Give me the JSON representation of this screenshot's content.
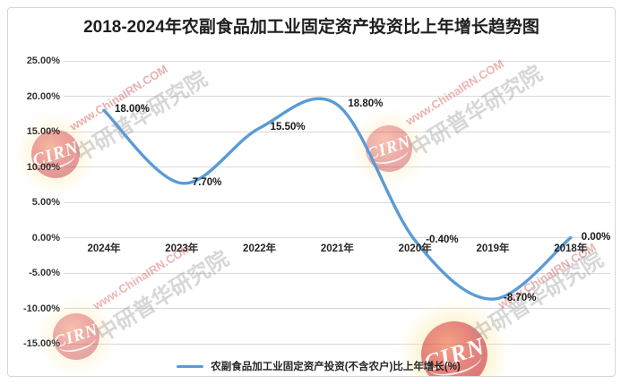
{
  "chart": {
    "title": "2018-2024年农副食品加工业固定资产投资比上年增长趋势图",
    "legend_label": "农副食品加工业固定资产投资(不含农户)比上年增长(%)",
    "line_color": "#5B9BD5"
  },
  "chart_data": {
    "type": "line",
    "smooth": true,
    "grid": true,
    "legend_position": "bottom",
    "title": "2018-2024年农副食品加工业固定资产投资比上年增长趋势图",
    "categories": [
      "2024年",
      "2023年",
      "2022年",
      "2021年",
      "2020年",
      "2019年",
      "2018年"
    ],
    "series": [
      {
        "name": "农副食品加工业固定资产投资(不含农户)比上年增长(%)",
        "values": [
          18.0,
          7.7,
          15.5,
          18.8,
          -0.4,
          -8.7,
          0.0
        ]
      }
    ],
    "data_labels": [
      "18.00%",
      "7.70%",
      "15.50%",
      "18.80%",
      "-0.40%",
      "-8.70%",
      "0.00%"
    ],
    "yticks": [
      "25.00%",
      "20.00%",
      "15.00%",
      "10.00%",
      "5.00%",
      "0.00%",
      "-5.00%",
      "-10.00%",
      "-15.00%"
    ],
    "ytick_values": [
      25,
      20,
      15,
      10,
      5,
      0,
      -5,
      -10,
      -15
    ],
    "ylim": [
      -15,
      25
    ],
    "xlabel": "",
    "ylabel": ""
  },
  "watermark": {
    "url_text": "www.ChinaIRN.COM",
    "brand_text": "中研普华研究院",
    "logo_text": "CIRN"
  }
}
